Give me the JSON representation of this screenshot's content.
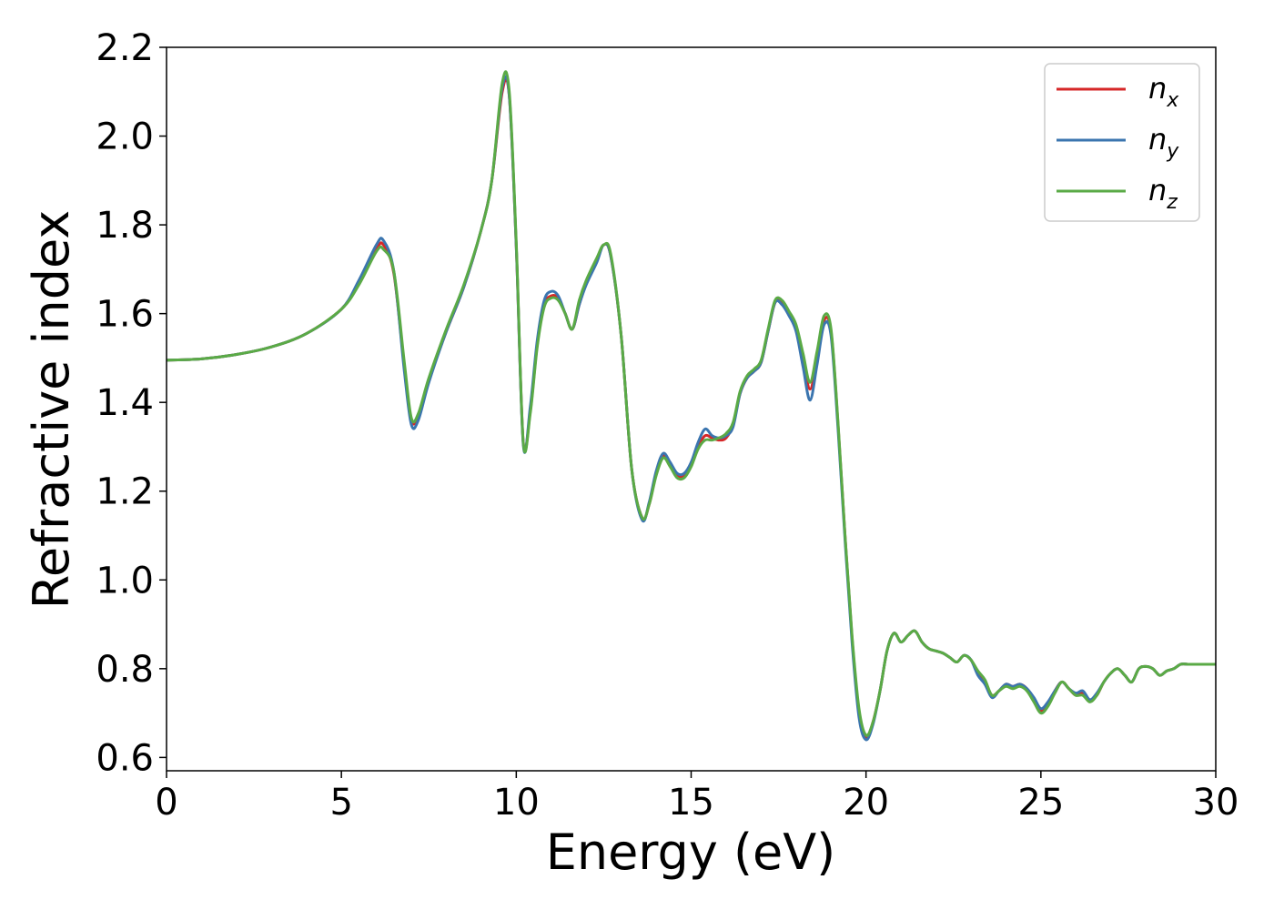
{
  "chart_data": {
    "type": "line",
    "title": "",
    "xlabel": "Energy (eV)",
    "ylabel": "Refractive index",
    "xlim": [
      0,
      30
    ],
    "ylim": [
      0.57,
      2.2
    ],
    "xticks": [
      0,
      5,
      10,
      15,
      20,
      25,
      30
    ],
    "xtick_labels": [
      "0",
      "5",
      "10",
      "15",
      "20",
      "25",
      "30"
    ],
    "yticks": [
      0.6,
      0.8,
      1.0,
      1.2,
      1.4,
      1.6,
      1.8,
      2.0,
      2.2
    ],
    "ytick_labels": [
      "0.6",
      "0.8",
      "1.0",
      "1.2",
      "1.4",
      "1.6",
      "1.8",
      "2.0",
      "2.2"
    ],
    "grid": false,
    "legend_position": "top-right",
    "x": [
      0,
      1,
      2,
      3,
      4,
      5,
      5.5,
      6,
      6.2,
      6.5,
      6.8,
      7.0,
      7.2,
      7.5,
      8,
      8.5,
      9,
      9.3,
      9.6,
      9.8,
      10.0,
      10.2,
      10.4,
      10.6,
      10.8,
      11.0,
      11.2,
      11.4,
      11.6,
      11.8,
      12.0,
      12.3,
      12.5,
      12.7,
      13.0,
      13.3,
      13.6,
      13.8,
      14.0,
      14.2,
      14.4,
      14.6,
      14.8,
      15.0,
      15.2,
      15.4,
      15.6,
      15.8,
      16.0,
      16.2,
      16.4,
      16.6,
      16.8,
      17.0,
      17.2,
      17.4,
      17.6,
      17.8,
      18.0,
      18.2,
      18.4,
      18.6,
      18.8,
      19.0,
      19.2,
      19.4,
      19.6,
      19.8,
      20.0,
      20.2,
      20.4,
      20.6,
      20.8,
      21.0,
      21.2,
      21.4,
      21.6,
      21.8,
      22.0,
      22.2,
      22.4,
      22.6,
      22.8,
      23.0,
      23.2,
      23.4,
      23.6,
      23.8,
      24.0,
      24.2,
      24.4,
      24.6,
      24.8,
      25.0,
      25.2,
      25.4,
      25.6,
      25.8,
      26.0,
      26.2,
      26.4,
      26.6,
      26.8,
      27.0,
      27.2,
      27.4,
      27.6,
      27.8,
      28.0,
      28.2,
      28.4,
      28.6,
      28.8,
      29.0,
      29.2,
      29.4,
      29.6,
      29.8,
      30.0
    ],
    "series": [
      {
        "name": "n_x",
        "legend_base": "n",
        "legend_sub": "x",
        "color": "#d62728",
        "y": [
          1.495,
          1.498,
          1.508,
          1.525,
          1.555,
          1.61,
          1.67,
          1.745,
          1.755,
          1.69,
          1.48,
          1.36,
          1.37,
          1.45,
          1.56,
          1.66,
          1.79,
          1.9,
          2.1,
          2.09,
          1.75,
          1.31,
          1.38,
          1.53,
          1.62,
          1.64,
          1.635,
          1.6,
          1.565,
          1.62,
          1.67,
          1.72,
          1.755,
          1.73,
          1.55,
          1.25,
          1.14,
          1.17,
          1.24,
          1.28,
          1.26,
          1.235,
          1.235,
          1.26,
          1.3,
          1.325,
          1.32,
          1.315,
          1.32,
          1.35,
          1.42,
          1.455,
          1.47,
          1.49,
          1.56,
          1.625,
          1.625,
          1.6,
          1.57,
          1.5,
          1.43,
          1.5,
          1.585,
          1.56,
          1.35,
          1.1,
          0.87,
          0.7,
          0.645,
          0.68,
          0.75,
          0.84,
          0.88,
          0.86,
          0.875,
          0.885,
          0.86,
          0.845,
          0.84,
          0.835,
          0.825,
          0.815,
          0.83,
          0.82,
          0.79,
          0.77,
          0.74,
          0.75,
          0.765,
          0.76,
          0.765,
          0.755,
          0.73,
          0.705,
          0.72,
          0.75,
          0.77,
          0.755,
          0.74,
          0.745,
          0.73,
          0.74,
          0.77,
          0.79,
          0.8,
          0.785,
          0.77,
          0.8,
          0.805,
          0.8,
          0.785,
          0.795,
          0.8,
          0.81,
          0.81,
          0.81,
          0.81,
          0.81,
          0.81
        ]
      },
      {
        "name": "n_y",
        "legend_base": "n",
        "legend_sub": "y",
        "color": "#3b75af",
        "y": [
          1.495,
          1.498,
          1.508,
          1.525,
          1.555,
          1.61,
          1.675,
          1.755,
          1.765,
          1.695,
          1.47,
          1.35,
          1.36,
          1.445,
          1.56,
          1.66,
          1.79,
          1.9,
          2.11,
          2.09,
          1.75,
          1.305,
          1.39,
          1.54,
          1.63,
          1.65,
          1.64,
          1.6,
          1.565,
          1.62,
          1.665,
          1.715,
          1.755,
          1.73,
          1.55,
          1.25,
          1.135,
          1.175,
          1.245,
          1.285,
          1.265,
          1.24,
          1.24,
          1.265,
          1.31,
          1.34,
          1.325,
          1.32,
          1.325,
          1.345,
          1.42,
          1.455,
          1.47,
          1.49,
          1.56,
          1.625,
          1.62,
          1.595,
          1.56,
          1.48,
          1.405,
          1.485,
          1.575,
          1.55,
          1.34,
          1.09,
          0.86,
          0.69,
          0.64,
          0.675,
          0.75,
          0.84,
          0.88,
          0.86,
          0.875,
          0.885,
          0.86,
          0.845,
          0.84,
          0.835,
          0.825,
          0.815,
          0.83,
          0.82,
          0.785,
          0.765,
          0.735,
          0.75,
          0.765,
          0.76,
          0.765,
          0.755,
          0.735,
          0.71,
          0.725,
          0.75,
          0.77,
          0.755,
          0.745,
          0.75,
          0.73,
          0.745,
          0.77,
          0.79,
          0.8,
          0.785,
          0.77,
          0.8,
          0.805,
          0.8,
          0.785,
          0.795,
          0.8,
          0.81,
          0.81,
          0.81,
          0.81,
          0.81,
          0.81
        ]
      },
      {
        "name": "n_z",
        "legend_base": "n",
        "legend_sub": "z",
        "color": "#5aaa46",
        "y": [
          1.495,
          1.498,
          1.508,
          1.525,
          1.555,
          1.61,
          1.665,
          1.74,
          1.745,
          1.695,
          1.49,
          1.365,
          1.375,
          1.455,
          1.565,
          1.665,
          1.79,
          1.9,
          2.12,
          2.1,
          1.76,
          1.31,
          1.375,
          1.525,
          1.615,
          1.635,
          1.63,
          1.6,
          1.565,
          1.63,
          1.675,
          1.725,
          1.755,
          1.735,
          1.55,
          1.25,
          1.14,
          1.17,
          1.235,
          1.275,
          1.255,
          1.23,
          1.23,
          1.255,
          1.295,
          1.315,
          1.315,
          1.32,
          1.33,
          1.355,
          1.425,
          1.46,
          1.475,
          1.495,
          1.565,
          1.63,
          1.63,
          1.605,
          1.575,
          1.51,
          1.445,
          1.515,
          1.595,
          1.565,
          1.355,
          1.1,
          0.875,
          0.71,
          0.65,
          0.68,
          0.75,
          0.84,
          0.88,
          0.86,
          0.875,
          0.885,
          0.86,
          0.845,
          0.84,
          0.835,
          0.825,
          0.815,
          0.83,
          0.82,
          0.795,
          0.775,
          0.74,
          0.75,
          0.76,
          0.755,
          0.76,
          0.75,
          0.725,
          0.7,
          0.715,
          0.745,
          0.77,
          0.755,
          0.74,
          0.74,
          0.725,
          0.74,
          0.77,
          0.79,
          0.8,
          0.785,
          0.77,
          0.8,
          0.805,
          0.8,
          0.785,
          0.795,
          0.8,
          0.81,
          0.81,
          0.81,
          0.81,
          0.81,
          0.81
        ]
      }
    ]
  }
}
